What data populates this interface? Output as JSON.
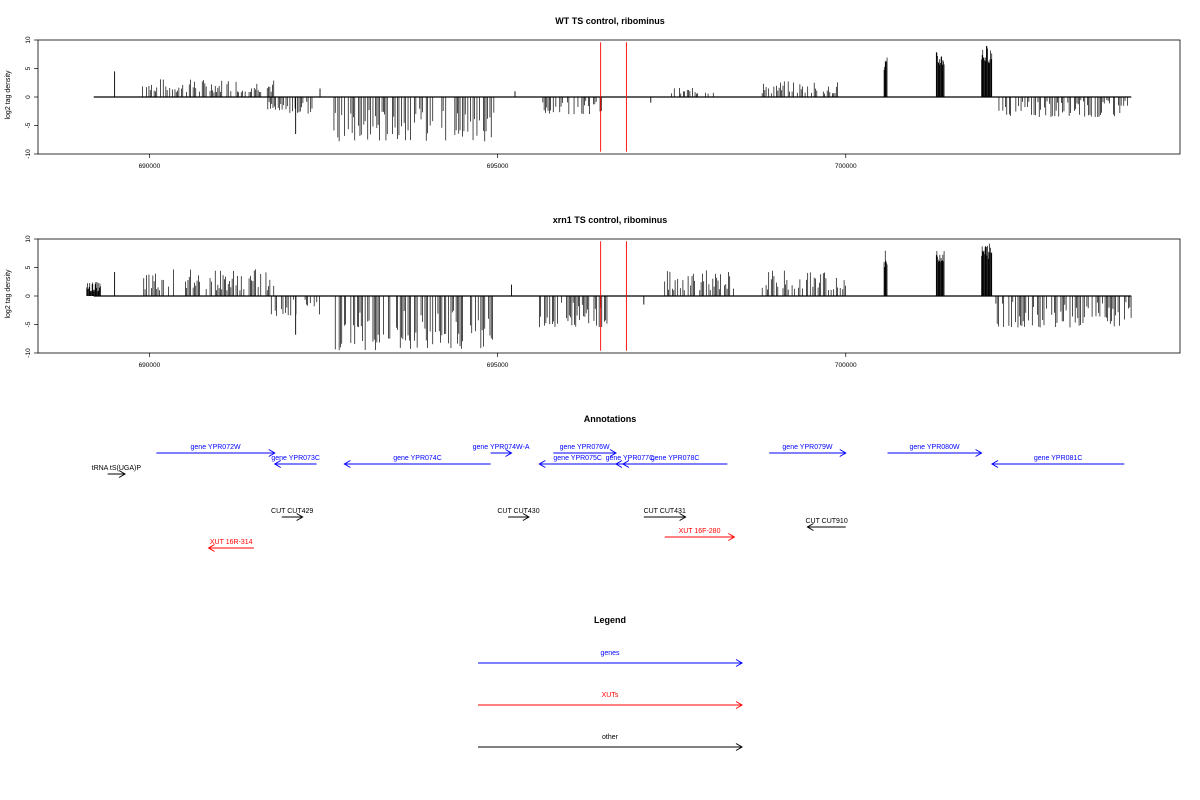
{
  "chart_data": [
    {
      "type": "bar",
      "title": "WT TS control, ribominus",
      "ylabel": "log2 tag density",
      "xlabel": "",
      "xlim": [
        688400,
        704800
      ],
      "ylim": [
        -10,
        10
      ],
      "y_ticks": [
        "10",
        "5",
        "0",
        "-5",
        "-10"
      ],
      "x_ticks": [
        "690000",
        "695000",
        "700000"
      ],
      "markers": [
        696480,
        696850
      ],
      "clusters": [
        {
          "start": 689900,
          "end": 691800,
          "min": 0.8,
          "max": 3.2
        },
        {
          "start": 691700,
          "end": 692400,
          "min": -3.0,
          "max": -0.5
        },
        {
          "start": 692650,
          "end": 694950,
          "min": -7.8,
          "max": -2.0
        },
        {
          "start": 695650,
          "end": 696500,
          "min": -3.0,
          "max": -0.5
        },
        {
          "start": 697500,
          "end": 698100,
          "min": 0.5,
          "max": 1.6
        },
        {
          "start": 698800,
          "end": 699900,
          "min": 0.6,
          "max": 2.8
        },
        {
          "start": 700550,
          "end": 700600,
          "min": 4.5,
          "max": 7.2
        },
        {
          "start": 701300,
          "end": 701420,
          "min": 5.5,
          "max": 8.0
        },
        {
          "start": 701950,
          "end": 702100,
          "min": 6.0,
          "max": 9.2
        },
        {
          "start": 702200,
          "end": 704100,
          "min": -3.5,
          "max": -0.5
        }
      ],
      "singles": [
        {
          "x": 689500,
          "y": 4.5
        },
        {
          "x": 692100,
          "y": -6.5
        },
        {
          "x": 692450,
          "y": 1.5
        },
        {
          "x": 695250,
          "y": 1.0
        },
        {
          "x": 697200,
          "y": -1.0
        }
      ]
    },
    {
      "type": "bar",
      "title": "xrn1 TS control, ribominus",
      "ylabel": "log2 tag density",
      "xlabel": "",
      "xlim": [
        688400,
        704800
      ],
      "ylim": [
        -10,
        10
      ],
      "y_ticks": [
        "10",
        "5",
        "0",
        "-5",
        "-10"
      ],
      "x_ticks": [
        "690000",
        "695000",
        "700000"
      ],
      "markers": [
        696480,
        696850
      ],
      "clusters": [
        {
          "start": 689100,
          "end": 689300,
          "min": 0.8,
          "max": 2.5
        },
        {
          "start": 689900,
          "end": 691800,
          "min": 1.0,
          "max": 4.8
        },
        {
          "start": 691750,
          "end": 692450,
          "min": -3.5,
          "max": -0.5
        },
        {
          "start": 692650,
          "end": 694950,
          "min": -9.5,
          "max": -2.5
        },
        {
          "start": 695600,
          "end": 696600,
          "min": -5.5,
          "max": -1.0
        },
        {
          "start": 697400,
          "end": 698400,
          "min": 1.0,
          "max": 4.5
        },
        {
          "start": 698800,
          "end": 700000,
          "min": 1.0,
          "max": 4.5
        },
        {
          "start": 700550,
          "end": 700600,
          "min": 5.0,
          "max": 8.0
        },
        {
          "start": 701300,
          "end": 701420,
          "min": 6.0,
          "max": 8.0
        },
        {
          "start": 701950,
          "end": 702100,
          "min": 6.5,
          "max": 9.5
        },
        {
          "start": 702100,
          "end": 704100,
          "min": -5.5,
          "max": -1.0
        }
      ],
      "singles": [
        {
          "x": 689500,
          "y": 4.2
        },
        {
          "x": 692100,
          "y": -6.8
        },
        {
          "x": 695200,
          "y": 2.0
        },
        {
          "x": 697100,
          "y": -1.5
        }
      ]
    }
  ],
  "annotations": {
    "title": "Annotations",
    "items": [
      {
        "label": "gene YPR072W",
        "color": "#0000ff",
        "direction": "right",
        "start": 690100,
        "end": 691800,
        "row": 0
      },
      {
        "label": "gene YPR073C",
        "color": "#0000ff",
        "direction": "left",
        "start": 691800,
        "end": 692400,
        "row": 1
      },
      {
        "label": "gene YPR074C",
        "color": "#0000ff",
        "direction": "left",
        "start": 692800,
        "end": 694900,
        "row": 1
      },
      {
        "label": "gene YPR074W-A",
        "color": "#0000ff",
        "direction": "right",
        "start": 694900,
        "end": 695200,
        "row": 0
      },
      {
        "label": "gene YPR075C",
        "color": "#0000ff",
        "direction": "left",
        "start": 695600,
        "end": 696700,
        "row": 1
      },
      {
        "label": "gene YPR076W",
        "color": "#0000ff",
        "direction": "right",
        "start": 695800,
        "end": 696700,
        "row": 0
      },
      {
        "label": "gene YPR077C",
        "color": "#0000ff",
        "direction": "left",
        "start": 696700,
        "end": 697100,
        "row": 1
      },
      {
        "label": "gene YPR078C",
        "color": "#0000ff",
        "direction": "left",
        "start": 696800,
        "end": 698300,
        "row": 1
      },
      {
        "label": "gene YPR079W",
        "color": "#0000ff",
        "direction": "right",
        "start": 698900,
        "end": 700000,
        "row": 0
      },
      {
        "label": "gene YPR080W",
        "color": "#0000ff",
        "direction": "right",
        "start": 700600,
        "end": 701950,
        "row": 0
      },
      {
        "label": "gene YPR081C",
        "color": "#0000ff",
        "direction": "left",
        "start": 702100,
        "end": 704000,
        "row": 1
      },
      {
        "label": "tRNA tS(UGA)P",
        "color": "#000000",
        "direction": "right",
        "start": 689400,
        "end": 689650,
        "row": 2
      },
      {
        "label": "CUT CUT429",
        "color": "#000000",
        "direction": "right",
        "start": 691900,
        "end": 692200,
        "row": 3
      },
      {
        "label": "CUT CUT430",
        "color": "#000000",
        "direction": "right",
        "start": 695150,
        "end": 695450,
        "row": 3
      },
      {
        "label": "CUT CUT431",
        "color": "#000000",
        "direction": "right",
        "start": 697100,
        "end": 697700,
        "row": 3
      },
      {
        "label": "CUT CUT910",
        "color": "#000000",
        "direction": "left",
        "start": 699450,
        "end": 700000,
        "row": 4
      },
      {
        "label": "XUT 16R-314",
        "color": "#ff0000",
        "direction": "left",
        "start": 690850,
        "end": 691500,
        "row": 5
      },
      {
        "label": "XUT 16F-280",
        "color": "#ff0000",
        "direction": "right",
        "start": 697400,
        "end": 698400,
        "row": 6
      }
    ]
  },
  "legend": {
    "title": "Legend",
    "items": [
      {
        "label": "genes",
        "color": "#0000ff"
      },
      {
        "label": "XUTs",
        "color": "#ff0000"
      },
      {
        "label": "other",
        "color": "#000000"
      }
    ]
  }
}
